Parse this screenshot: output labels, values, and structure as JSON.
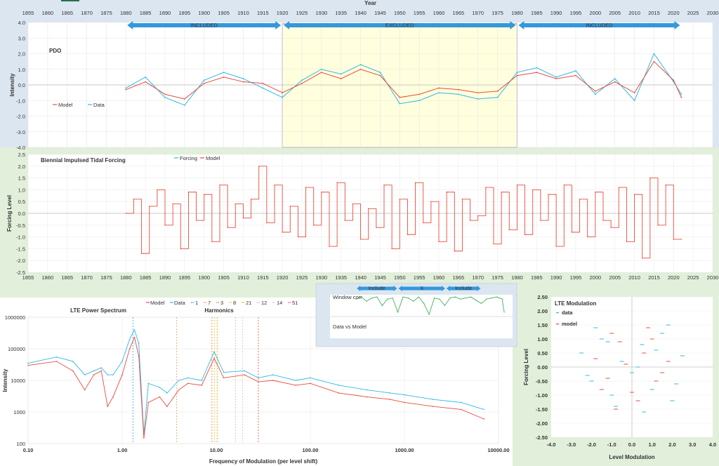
{
  "window": {
    "tab_color": "#217346"
  },
  "colors": {
    "model": "#e74c3c",
    "data": "#2fb8e6",
    "forcing": "#2fb8e6",
    "arrow": "#3498db",
    "excluded_fill": "#ffffdd",
    "window_corr": "#2eaa4a"
  },
  "chart_data": [
    {
      "type": "line",
      "id": "pdo",
      "title": "PDO",
      "xlabel": "Year",
      "ylabel": "Intensity",
      "xlim": [
        1855,
        2030
      ],
      "ylim": [
        -4.0,
        4.0
      ],
      "x_ticks": [
        "1855",
        "1860",
        "1865",
        "1870",
        "1875",
        "1880",
        "1885",
        "1890",
        "1895",
        "1900",
        "1905",
        "1910",
        "1915",
        "1920",
        "1925",
        "1930",
        "1935",
        "1940",
        "1945",
        "1950",
        "1955",
        "1960",
        "1965",
        "1970",
        "1975",
        "1980",
        "1985",
        "1990",
        "1995",
        "2000",
        "2005",
        "2010",
        "2015",
        "2020",
        "2025",
        "2030"
      ],
      "y_ticks": [
        "4.0",
        "3.0",
        "2.0",
        "1.0",
        "0.0",
        "-1.0",
        "-2.0",
        "-3.0",
        "-4.0"
      ],
      "legend": [
        "Model",
        "Data"
      ],
      "regions": [
        {
          "label": "INCLUDED",
          "from": 1880,
          "to": 1920
        },
        {
          "label": "EXCLUDED",
          "from": 1920,
          "to": 1980
        },
        {
          "label": "INCLUDED",
          "from": 1980,
          "to": 2022
        }
      ],
      "grid": true,
      "series": [
        {
          "name": "Model",
          "x": [
            1880,
            1885,
            1890,
            1895,
            1900,
            1905,
            1910,
            1915,
            1920,
            1925,
            1930,
            1935,
            1940,
            1945,
            1950,
            1955,
            1960,
            1965,
            1970,
            1975,
            1980,
            1985,
            1990,
            1995,
            2000,
            2005,
            2010,
            2015,
            2020,
            2022
          ],
          "values": [
            -0.3,
            0.2,
            -0.6,
            -0.9,
            0.1,
            0.5,
            0.2,
            0.1,
            -0.5,
            0.1,
            0.8,
            0.4,
            1.0,
            0.6,
            -0.8,
            -0.6,
            -0.2,
            -0.3,
            -0.5,
            -0.4,
            0.6,
            0.8,
            0.4,
            0.6,
            -0.4,
            0.2,
            -0.5,
            1.5,
            0.3,
            -0.8
          ]
        },
        {
          "name": "Data",
          "x": [
            1880,
            1885,
            1890,
            1895,
            1900,
            1905,
            1910,
            1915,
            1920,
            1925,
            1930,
            1935,
            1940,
            1945,
            1950,
            1955,
            1960,
            1965,
            1970,
            1975,
            1980,
            1985,
            1990,
            1995,
            2000,
            2005,
            2010,
            2015,
            2020,
            2022
          ],
          "values": [
            -0.2,
            0.5,
            -0.8,
            -1.3,
            0.3,
            0.8,
            0.4,
            -0.2,
            -0.8,
            0.3,
            1.0,
            0.7,
            1.3,
            0.8,
            -1.2,
            -1.0,
            -0.5,
            -0.6,
            -0.9,
            -0.8,
            0.8,
            1.1,
            0.5,
            0.9,
            -0.6,
            0.4,
            -1.0,
            2.0,
            0.2,
            -0.6
          ]
        }
      ]
    },
    {
      "type": "line",
      "id": "forcing",
      "title": "Biennial Impulsed Tidal Forcing",
      "xlabel": "Year",
      "ylabel": "Forcing Level",
      "xlim": [
        1855,
        2030
      ],
      "ylim": [
        -2.5,
        2.5
      ],
      "x_ticks": [
        "1855",
        "1860",
        "1865",
        "1870",
        "1875",
        "1880",
        "1885",
        "1890",
        "1895",
        "1900",
        "1905",
        "1910",
        "1915",
        "1920",
        "1925",
        "1930",
        "1935",
        "1940",
        "1945",
        "1950",
        "1955",
        "1960",
        "1965",
        "1970",
        "1975",
        "1980",
        "1985",
        "1990",
        "1995",
        "2000",
        "2005",
        "2010",
        "2015",
        "2020",
        "2025",
        "2030"
      ],
      "y_ticks": [
        "2.5",
        "2.0",
        "1.5",
        "1.0",
        "0.5",
        "0.0",
        "-0.5",
        "-1.0",
        "-1.5",
        "-2.0",
        "-2.5"
      ],
      "legend": [
        "Forcing",
        "Model"
      ],
      "grid": true,
      "series": [
        {
          "name": "Model",
          "x": [
            1880,
            1882,
            1884,
            1886,
            1888,
            1890,
            1892,
            1894,
            1896,
            1898,
            1900,
            1902,
            1904,
            1906,
            1908,
            1910,
            1912,
            1914,
            1916,
            1918,
            1920,
            1922,
            1924,
            1926,
            1928,
            1930,
            1932,
            1934,
            1936,
            1938,
            1940,
            1942,
            1944,
            1946,
            1948,
            1950,
            1952,
            1954,
            1956,
            1958,
            1960,
            1962,
            1964,
            1966,
            1968,
            1970,
            1972,
            1974,
            1976,
            1978,
            1980,
            1982,
            1984,
            1986,
            1988,
            1990,
            1992,
            1994,
            1996,
            1998,
            2000,
            2002,
            2004,
            2006,
            2008,
            2010,
            2012,
            2014,
            2016,
            2018,
            2020,
            2022
          ],
          "values": [
            0.0,
            0.6,
            -1.7,
            0.3,
            1.0,
            -0.5,
            0.4,
            -1.5,
            0.9,
            -0.3,
            0.8,
            -1.2,
            1.2,
            -0.6,
            0.4,
            -0.2,
            0.6,
            2.0,
            -0.4,
            1.2,
            -0.8,
            0.3,
            -1.0,
            1.1,
            -0.5,
            0.9,
            -1.4,
            1.3,
            -0.3,
            0.4,
            -1.1,
            0.2,
            -0.6,
            1.2,
            -1.5,
            0.6,
            -0.9,
            1.3,
            -0.4,
            0.5,
            -1.2,
            0.9,
            -1.6,
            0.6,
            -0.3,
            -0.1,
            1.1,
            -1.3,
            0.9,
            -0.7,
            1.2,
            -0.9,
            1.0,
            -0.3,
            0.8,
            -1.4,
            1.2,
            -0.8,
            0.6,
            -1.0,
            0.9,
            -0.3,
            -0.6,
            1.1,
            -1.2,
            0.8,
            -1.9,
            1.5,
            -0.5,
            1.2,
            -1.1,
            -1.1
          ]
        }
      ]
    },
    {
      "type": "line",
      "id": "lte_spectrum",
      "title": "LTE Power Spectrum",
      "subtitle": "Harmonics",
      "xlabel": "Frequency of Modulation (per level shift)",
      "ylabel": "Intensity",
      "x_scale": "log",
      "y_scale": "log",
      "xlim": [
        0.1,
        10000
      ],
      "ylim": [
        100,
        1000000
      ],
      "x_ticks": [
        "0.10",
        "1.00",
        "10.00",
        "100.00",
        "1000.00",
        "10000.00"
      ],
      "y_ticks": [
        "1000000",
        "100000",
        "10000",
        "1000",
        "100"
      ],
      "legend": [
        "Model",
        "Data",
        "1",
        "7",
        "3",
        "8",
        "21",
        "12",
        "14",
        "51"
      ],
      "harmonics": [
        1.3,
        3.8,
        9.0,
        9.6,
        10.3,
        16.0,
        19.0,
        28.0
      ],
      "series": [
        {
          "name": "Model",
          "x": [
            0.1,
            0.2,
            0.3,
            0.4,
            0.5,
            0.6,
            0.7,
            0.8,
            1.0,
            1.2,
            1.35,
            1.5,
            1.7,
            1.9,
            2.5,
            3.0,
            4.0,
            5.0,
            7.0,
            9.5,
            12.0,
            20.0,
            28.0,
            40.0,
            70.0,
            100.0,
            200.0,
            400.0,
            700.0,
            1000.0,
            2000.0,
            4000.0,
            7000.0
          ],
          "values": [
            30000,
            40000,
            20000,
            5000,
            15000,
            20000,
            1500,
            3000,
            15000,
            100000,
            230000,
            60000,
            150,
            2000,
            3000,
            1500,
            5000,
            8000,
            7000,
            50000,
            12000,
            15000,
            9000,
            10000,
            7000,
            8000,
            4000,
            3000,
            2500,
            2000,
            1500,
            1200,
            600
          ]
        },
        {
          "name": "Data",
          "x": [
            0.1,
            0.2,
            0.3,
            0.4,
            0.5,
            0.6,
            0.7,
            0.8,
            1.0,
            1.2,
            1.35,
            1.5,
            1.7,
            1.9,
            2.5,
            3.0,
            4.0,
            5.0,
            7.0,
            9.5,
            12.0,
            20.0,
            28.0,
            40.0,
            70.0,
            100.0,
            200.0,
            400.0,
            700.0,
            1000.0,
            2000.0,
            4000.0,
            7000.0
          ],
          "values": [
            35000,
            55000,
            40000,
            15000,
            20000,
            25000,
            15000,
            15000,
            40000,
            200000,
            400000,
            150000,
            200,
            8000,
            6000,
            4000,
            10000,
            12000,
            10000,
            80000,
            18000,
            20000,
            12000,
            15000,
            10000,
            12000,
            7000,
            5000,
            4000,
            3500,
            2500,
            2000,
            1200
          ]
        }
      ]
    },
    {
      "type": "line",
      "id": "window_corr",
      "title": "Window corr",
      "legend": [
        "Data vs Model"
      ],
      "xlim": [
        1855,
        2030
      ],
      "ylim": [
        -1.0,
        1.0
      ],
      "regions": [
        {
          "label": "Include",
          "from": 1880,
          "to": 1920
        },
        {
          "label": "X",
          "from": 1920,
          "to": 1966
        },
        {
          "label": "Include",
          "from": 1966,
          "to": 2000
        }
      ],
      "series": [
        {
          "name": "Window corr",
          "x": [
            1880,
            1885,
            1890,
            1895,
            1900,
            1905,
            1910,
            1915,
            1920,
            1925,
            1930,
            1935,
            1940,
            1945,
            1950,
            1955,
            1960,
            1965,
            1970,
            1975,
            1980,
            1985,
            1990,
            1995,
            2000,
            2005,
            2010,
            2015,
            2020,
            2022
          ],
          "values": [
            0.8,
            0.9,
            0.7,
            0.85,
            0.9,
            0.5,
            0.8,
            0.85,
            0.2,
            0.9,
            0.85,
            0.7,
            0.9,
            0.6,
            0.1,
            0.85,
            0.8,
            0.5,
            0.85,
            0.9,
            0.8,
            0.85,
            0.9,
            0.75,
            0.6,
            0.8,
            0.85,
            0.9,
            0.8,
            0.2
          ]
        }
      ]
    },
    {
      "type": "scatter",
      "id": "lte_modulation",
      "title": "LTE Modulation",
      "xlabel": "Level Modulation",
      "ylabel": "Forcing Level",
      "xlim": [
        -4.0,
        4.0
      ],
      "ylim": [
        -2.5,
        2.5
      ],
      "x_ticks": [
        "-4.0",
        "-3.0",
        "-2.0",
        "-1.0",
        "0.0",
        "1.0",
        "2.0",
        "3.0",
        "4.0"
      ],
      "y_ticks": [
        "2.50",
        "2.00",
        "1.50",
        "1.00",
        "0.50",
        "0.00",
        "-0.50",
        "-1.00",
        "-1.50",
        "-2.00",
        "-2.50"
      ],
      "legend": [
        "data",
        "model"
      ],
      "series": [
        {
          "name": "data",
          "x": [
            -2.5,
            -2.0,
            -1.5,
            -1.0,
            -0.5,
            0.0,
            0.5,
            1.0,
            1.5,
            2.0,
            2.5,
            -1.8,
            -0.8,
            0.3,
            1.2,
            2.2,
            -2.2,
            -1.2,
            0.6,
            1.8
          ],
          "values": [
            0.5,
            -0.5,
            1.0,
            -1.0,
            0.2,
            -0.2,
            0.8,
            -0.8,
            1.2,
            -1.2,
            0.4,
            1.4,
            -1.4,
            0.0,
            0.6,
            -0.6,
            -0.3,
            0.9,
            -1.6,
            1.5
          ]
        },
        {
          "name": "model",
          "x": [
            -1.8,
            -1.2,
            -0.6,
            0.0,
            0.6,
            1.2,
            1.8,
            -1.0,
            0.3,
            1.0,
            -0.3,
            -1.5,
            1.5,
            0.8,
            -0.8
          ],
          "values": [
            0.3,
            -0.4,
            0.9,
            -0.9,
            0.5,
            -0.5,
            0.2,
            1.2,
            -1.2,
            1.0,
            0.1,
            -0.8,
            -0.2,
            1.4,
            -1.5
          ]
        }
      ]
    }
  ]
}
